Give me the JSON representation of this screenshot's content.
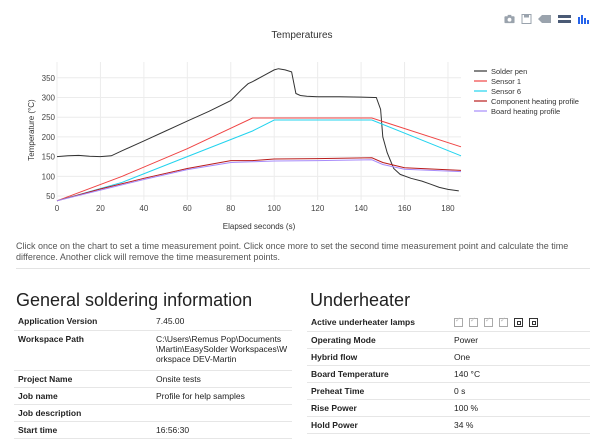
{
  "toolbar": {
    "icons": [
      "camera-icon",
      "save-icon",
      "tag-icon",
      "stack-icon",
      "bar-chart-icon"
    ]
  },
  "chart_data": {
    "type": "line",
    "title": "Temperatures",
    "xlabel": "Elapsed seconds (s)",
    "ylabel": "Temperature (°C)",
    "xlim": [
      0,
      186
    ],
    "ylim": [
      40,
      390
    ],
    "x_ticks": [
      0,
      20,
      40,
      60,
      80,
      100,
      120,
      140,
      160,
      180
    ],
    "y_ticks": [
      50,
      100,
      150,
      200,
      250,
      300,
      350
    ],
    "legend_position": "right",
    "series": [
      {
        "name": "Solder pen",
        "color": "#333333",
        "points": [
          [
            0,
            150
          ],
          [
            5,
            152
          ],
          [
            10,
            153
          ],
          [
            15,
            151
          ],
          [
            20,
            150
          ],
          [
            25,
            152
          ],
          [
            30,
            165
          ],
          [
            40,
            190
          ],
          [
            50,
            215
          ],
          [
            60,
            240
          ],
          [
            70,
            265
          ],
          [
            80,
            292
          ],
          [
            85,
            320
          ],
          [
            88,
            335
          ],
          [
            90,
            340
          ],
          [
            95,
            355
          ],
          [
            100,
            370
          ],
          [
            102,
            373
          ],
          [
            105,
            370
          ],
          [
            108,
            365
          ],
          [
            110,
            310
          ],
          [
            112,
            305
          ],
          [
            115,
            303
          ],
          [
            120,
            302
          ],
          [
            130,
            302
          ],
          [
            140,
            301
          ],
          [
            146,
            300
          ],
          [
            147,
            300
          ],
          [
            149,
            270
          ],
          [
            150,
            200
          ],
          [
            152,
            160
          ],
          [
            155,
            120
          ],
          [
            158,
            105
          ],
          [
            163,
            95
          ],
          [
            168,
            88
          ],
          [
            172,
            80
          ],
          [
            176,
            72
          ],
          [
            180,
            67
          ],
          [
            185,
            63
          ]
        ]
      },
      {
        "name": "Sensor 1",
        "color": "#ef4444",
        "points": [
          [
            0,
            38
          ],
          [
            30,
            100
          ],
          [
            60,
            170
          ],
          [
            90,
            248
          ],
          [
            145,
            248
          ],
          [
            186,
            175
          ]
        ]
      },
      {
        "name": "Sensor 6",
        "color": "#22d3ee",
        "points": [
          [
            0,
            38
          ],
          [
            30,
            85
          ],
          [
            60,
            150
          ],
          [
            90,
            215
          ],
          [
            100,
            243
          ],
          [
            145,
            243
          ],
          [
            186,
            152
          ]
        ]
      },
      {
        "name": "Component heating profile",
        "color": "#b91c1c",
        "points": [
          [
            0,
            38
          ],
          [
            20,
            68
          ],
          [
            40,
            95
          ],
          [
            60,
            120
          ],
          [
            80,
            140
          ],
          [
            90,
            140
          ],
          [
            100,
            144
          ],
          [
            120,
            145
          ],
          [
            145,
            147
          ],
          [
            150,
            135
          ],
          [
            160,
            122
          ],
          [
            186,
            115
          ]
        ]
      },
      {
        "name": "Board heating profile",
        "color": "#a78bfa",
        "points": [
          [
            0,
            38
          ],
          [
            20,
            65
          ],
          [
            40,
            92
          ],
          [
            60,
            117
          ],
          [
            80,
            135
          ],
          [
            90,
            137
          ],
          [
            100,
            139
          ],
          [
            120,
            140
          ],
          [
            145,
            142
          ],
          [
            150,
            130
          ],
          [
            160,
            118
          ],
          [
            186,
            112
          ]
        ]
      }
    ]
  },
  "note": "Click once on the chart to set a time measurement point. Click once more to set the second time measurement point and calculate the time difference. Another click will remove the time measurement points.",
  "general": {
    "title": "General soldering information",
    "rows": [
      {
        "label": "Application Version",
        "value": "7.45.00"
      },
      {
        "label": "Workspace Path",
        "value": "C:\\Users\\Remus Pop\\Documents\\Martin\\EasySolder Workspaces\\Workspace DEV-Martin"
      },
      {
        "label": "Project Name",
        "value": "Onsite tests"
      },
      {
        "label": "Job name",
        "value": "Profile for help samples"
      },
      {
        "label": "Job description",
        "value": ""
      },
      {
        "label": "Start time",
        "value": "16:56:30"
      }
    ]
  },
  "underheater": {
    "title": "Underheater",
    "lamps_label": "Active underheater lamps",
    "lamps": [
      false,
      false,
      false,
      false,
      true,
      true
    ],
    "rows": [
      {
        "label": "Operating Mode",
        "value": "Power"
      },
      {
        "label": "Hybrid flow",
        "value": "One"
      },
      {
        "label": "Board Temperature",
        "value": "140 °C"
      },
      {
        "label": "Preheat Time",
        "value": "0 s"
      },
      {
        "label": "Rise Power",
        "value": "100 %"
      },
      {
        "label": "Hold Power",
        "value": "34 %"
      }
    ]
  }
}
